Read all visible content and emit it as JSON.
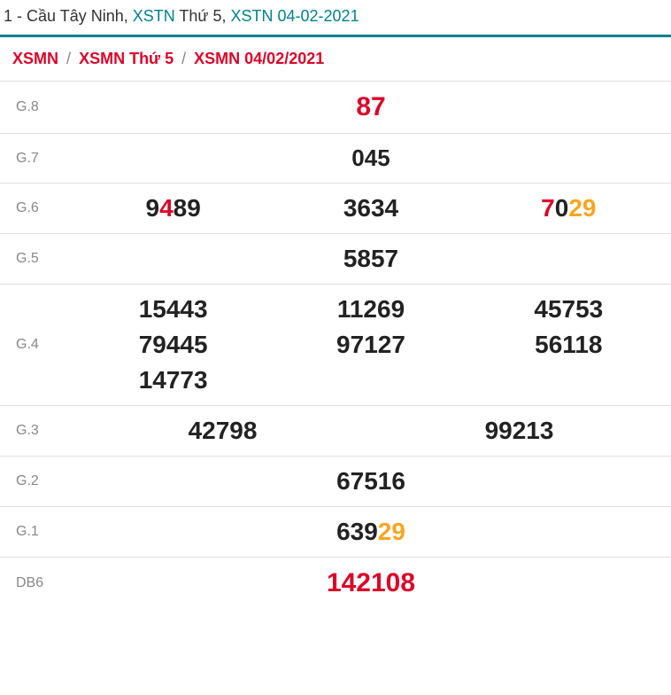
{
  "header": {
    "prefix": "1 - Cầu Tây Ninh, ",
    "link1": "XSTN",
    "mid": " Thứ 5, ",
    "link2": "XSTN 04-02-2021"
  },
  "breadcrumb": {
    "items": [
      "XSMN",
      "XSMN Thứ 5",
      "XSMN 04/02/2021"
    ],
    "sep": "/"
  },
  "colors": {
    "accent": "#00818a",
    "highlight_red": "#d9052a",
    "highlight_yellow": "#f5a623",
    "label_grey": "#888888",
    "border": "#e0e0e0",
    "text": "#222222"
  },
  "typography": {
    "header_fontsize": 18,
    "breadcrumb_fontsize": 18,
    "label_fontsize": 16,
    "number_fontsize": 28,
    "big_number_fontsize": 30
  },
  "rows": [
    {
      "label": "G.8",
      "class": "row-g8",
      "cells": [
        {
          "span": "full",
          "segments": [
            {
              "t": "87",
              "c": "red"
            }
          ]
        }
      ]
    },
    {
      "label": "G.7",
      "class": "row-g7",
      "cells": [
        {
          "span": "full",
          "segments": [
            {
              "t": "045"
            }
          ]
        }
      ]
    },
    {
      "label": "G.6",
      "class": "",
      "cells": [
        {
          "span": "third",
          "segments": [
            {
              "t": "9"
            },
            {
              "t": "4",
              "c": "red"
            },
            {
              "t": "89"
            }
          ]
        },
        {
          "span": "third",
          "segments": [
            {
              "t": "3634"
            }
          ]
        },
        {
          "span": "third",
          "segments": [
            {
              "t": "7",
              "c": "red"
            },
            {
              "t": "0"
            },
            {
              "t": "29",
              "c": "yellow"
            }
          ]
        }
      ]
    },
    {
      "label": "G.5",
      "class": "",
      "cells": [
        {
          "span": "full",
          "segments": [
            {
              "t": "5857"
            }
          ]
        }
      ]
    },
    {
      "label": "G.4",
      "class": "",
      "cells": [
        {
          "span": "third",
          "segments": [
            {
              "t": "15443"
            }
          ]
        },
        {
          "span": "third",
          "segments": [
            {
              "t": "11269"
            }
          ]
        },
        {
          "span": "third",
          "segments": [
            {
              "t": "45753"
            }
          ]
        },
        {
          "span": "third",
          "segments": [
            {
              "t": "79445"
            }
          ]
        },
        {
          "span": "third",
          "segments": [
            {
              "t": "97127"
            }
          ]
        },
        {
          "span": "third",
          "segments": [
            {
              "t": "56118"
            }
          ]
        },
        {
          "span": "third",
          "segments": [
            {
              "t": "14773"
            }
          ]
        },
        {
          "span": "third",
          "segments": [
            {
              "t": ""
            }
          ]
        },
        {
          "span": "third",
          "segments": [
            {
              "t": ""
            }
          ]
        }
      ]
    },
    {
      "label": "G.3",
      "class": "",
      "cells": [
        {
          "span": "half",
          "segments": [
            {
              "t": "42798"
            }
          ]
        },
        {
          "span": "half",
          "segments": [
            {
              "t": "99213"
            }
          ]
        }
      ]
    },
    {
      "label": "G.2",
      "class": "",
      "cells": [
        {
          "span": "full",
          "segments": [
            {
              "t": "67516"
            }
          ]
        }
      ]
    },
    {
      "label": "G.1",
      "class": "",
      "cells": [
        {
          "span": "full",
          "segments": [
            {
              "t": "639"
            },
            {
              "t": "29",
              "c": "yellow"
            }
          ]
        }
      ]
    },
    {
      "label": "DB6",
      "class": "row-db",
      "cells": [
        {
          "span": "full",
          "segments": [
            {
              "t": "142108",
              "c": "red"
            }
          ]
        }
      ]
    }
  ]
}
